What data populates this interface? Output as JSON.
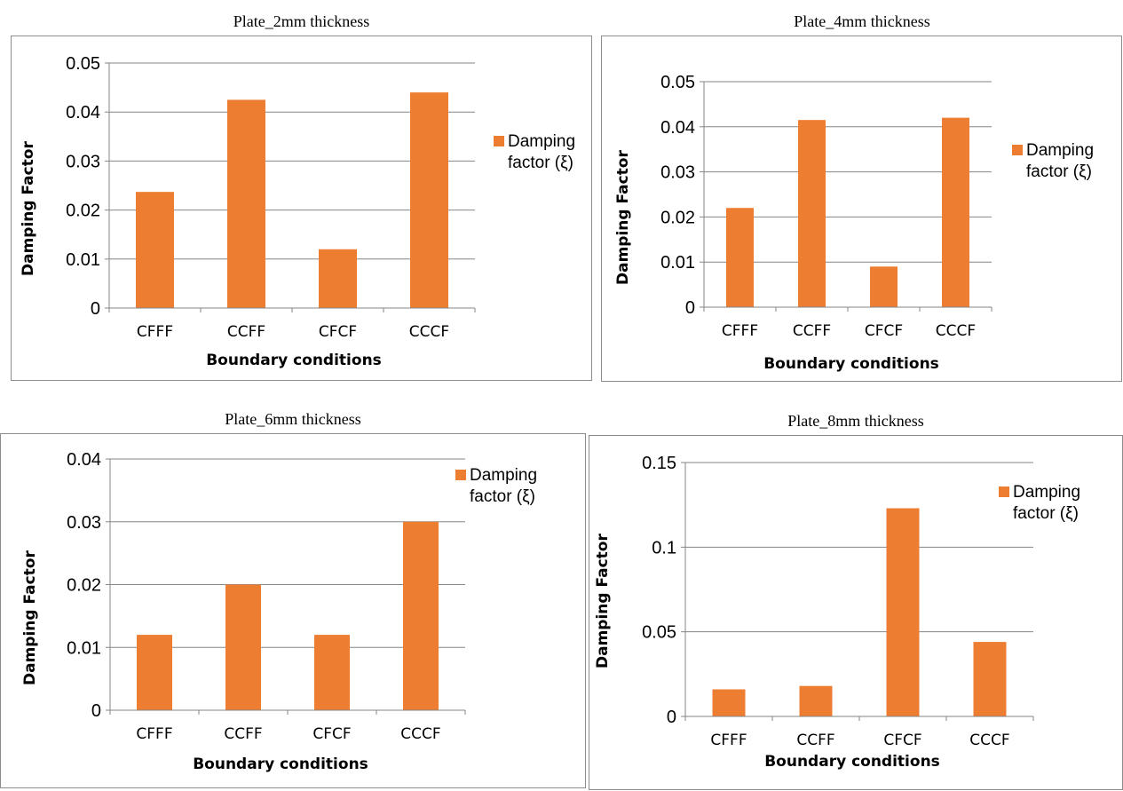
{
  "colors": {
    "bar": "#ED7D31",
    "axis": "#868686",
    "grid": "#868686",
    "border": "#8c8c8c",
    "text": "#000000"
  },
  "chart_data": [
    {
      "type": "bar",
      "title": "Plate_2mm thickness",
      "xlabel": "Boundary conditions",
      "ylabel": "Damping Factor",
      "categories": [
        "CFFF",
        "CCFF",
        "CFCF",
        "CCCF"
      ],
      "series": [
        {
          "name": "Damping factor (ξ)",
          "values": [
            0.0237,
            0.0425,
            0.012,
            0.044
          ]
        }
      ],
      "ylim": [
        0,
        0.05
      ],
      "yticks": [
        "0",
        "0.01",
        "0.02",
        "0.03",
        "0.04",
        "0.05"
      ],
      "grid": true,
      "legend": "right"
    },
    {
      "type": "bar",
      "title": "Plate_4mm thickness",
      "xlabel": "Boundary conditions",
      "ylabel": "Damping Factor",
      "categories": [
        "CFFF",
        "CCFF",
        "CFCF",
        "CCCF"
      ],
      "series": [
        {
          "name": "Damping factor (ξ)",
          "values": [
            0.022,
            0.0415,
            0.009,
            0.042
          ]
        }
      ],
      "ylim": [
        0,
        0.05
      ],
      "yticks": [
        "0",
        "0.01",
        "0.02",
        "0.03",
        "0.04",
        "0.05"
      ],
      "grid": true,
      "legend": "right"
    },
    {
      "type": "bar",
      "title": "Plate_6mm thickness",
      "xlabel": "Boundary conditions",
      "ylabel": "Damping Factor",
      "categories": [
        "CFFF",
        "CCFF",
        "CFCF",
        "CCCF"
      ],
      "series": [
        {
          "name": "Damping factor (ξ)",
          "values": [
            0.012,
            0.02,
            0.012,
            0.03
          ]
        }
      ],
      "ylim": [
        0,
        0.04
      ],
      "yticks": [
        "0",
        "0.01",
        "0.02",
        "0.03",
        "0.04"
      ],
      "grid": true,
      "legend": "top-right"
    },
    {
      "type": "bar",
      "title": "Plate_8mm thickness",
      "xlabel": "Boundary conditions",
      "ylabel": "Damping Factor",
      "categories": [
        "CFFF",
        "CCFF",
        "CFCF",
        "CCCF"
      ],
      "series": [
        {
          "name": "Damping factor (ξ)",
          "values": [
            0.016,
            0.018,
            0.123,
            0.044
          ]
        }
      ],
      "ylim": [
        0,
        0.15
      ],
      "yticks": [
        "0",
        "0.05",
        "0.1",
        "0.15"
      ],
      "grid": true,
      "legend": "top-right"
    }
  ]
}
